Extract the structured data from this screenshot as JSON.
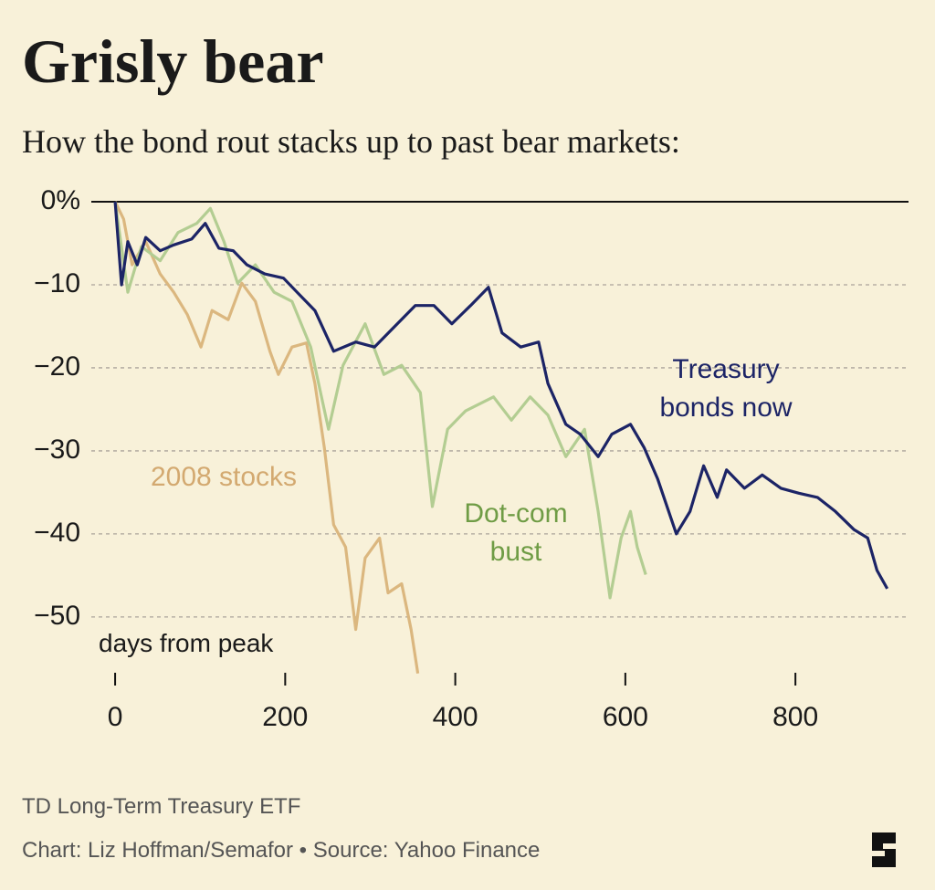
{
  "chart_data": {
    "type": "line",
    "title": "Grisly bear",
    "subtitle": "How the bond rout stacks up to past bear markets:",
    "x_label": "days from peak",
    "source_note": "TD Long-Term Treasury ETF",
    "credit": "Chart: Liz Hoffman/Semafor • Source: Yahoo Finance",
    "xlim": [
      -28,
      933
    ],
    "ylim": [
      -57.6,
      0
    ],
    "xticks": [
      0,
      200,
      400,
      600,
      800
    ],
    "yticks": [
      {
        "value": 0,
        "label": "0%"
      },
      {
        "value": -10,
        "label": "−10"
      },
      {
        "value": -20,
        "label": "−20"
      },
      {
        "value": -30,
        "label": "−30"
      },
      {
        "value": -40,
        "label": "−40"
      },
      {
        "value": -50,
        "label": "−50"
      }
    ],
    "grid": true,
    "series": [
      {
        "name": "2008 stocks",
        "color": "#dbb77f",
        "x": [
          0,
          10,
          20,
          36,
          53,
          69,
          85,
          101,
          114,
          133,
          149,
          165,
          182,
          192,
          208,
          225,
          235,
          246,
          257,
          271,
          283,
          294,
          311,
          321,
          337,
          348,
          356
        ],
        "values": [
          0,
          -2.1,
          -7.6,
          -4.8,
          -8.7,
          -10.9,
          -13.6,
          -17.5,
          -13.1,
          -14.2,
          -9.8,
          -12,
          -18,
          -20.8,
          -17.5,
          -17,
          -21.9,
          -29.6,
          -38.9,
          -41.6,
          -51.5,
          -42.9,
          -40.5,
          -47.1,
          -46,
          -51.5,
          -56.8
        ]
      },
      {
        "name": "Dot-com bust",
        "color": "#b3cd92",
        "x": [
          0,
          15,
          31,
          53,
          74,
          96,
          112,
          128,
          144,
          165,
          187,
          208,
          230,
          251,
          268,
          294,
          316,
          337,
          359,
          373,
          391,
          412,
          445,
          466,
          488,
          509,
          530,
          552,
          568,
          582,
          595,
          606,
          614,
          624
        ],
        "values": [
          0,
          -10.9,
          -5.4,
          -7.1,
          -3.7,
          -2.6,
          -0.8,
          -4.8,
          -9.8,
          -7.6,
          -10.9,
          -12,
          -17.5,
          -27.4,
          -19.7,
          -14.7,
          -20.8,
          -19.7,
          -23,
          -36.7,
          -27.4,
          -25.2,
          -23.5,
          -26.3,
          -23.5,
          -25.7,
          -30.7,
          -27.4,
          -37.3,
          -47.7,
          -40.5,
          -37.3,
          -41.6,
          -44.9
        ]
      },
      {
        "name": "Treasury bonds now",
        "color": "#1c2466",
        "x": [
          0,
          7.5,
          15,
          26,
          36,
          53,
          69,
          90,
          106,
          122,
          139,
          155,
          176,
          198,
          214,
          235,
          257,
          283,
          305,
          326,
          353,
          375,
          396,
          418,
          439,
          455,
          477,
          498,
          509,
          530,
          547,
          568,
          584,
          606,
          622,
          638,
          660,
          676,
          692,
          708,
          719,
          740,
          761,
          783,
          804,
          826,
          847,
          869,
          885,
          896,
          908
        ],
        "values": [
          0,
          -10,
          -4.8,
          -7.6,
          -4.3,
          -5.9,
          -5.2,
          -4.5,
          -2.6,
          -5.6,
          -5.9,
          -7.6,
          -8.7,
          -9.2,
          -10.9,
          -13.1,
          -18,
          -16.9,
          -17.5,
          -15.3,
          -12.5,
          -12.5,
          -14.7,
          -12.5,
          -10.3,
          -15.8,
          -17.5,
          -16.9,
          -21.9,
          -26.8,
          -28,
          -30.7,
          -28,
          -26.8,
          -29.6,
          -33.4,
          -40,
          -37.3,
          -31.8,
          -35.6,
          -32.3,
          -34.5,
          -32.9,
          -34.5,
          -35.1,
          -35.6,
          -37.3,
          -39.5,
          -40.5,
          -44.4,
          -46.6
        ]
      }
    ]
  }
}
